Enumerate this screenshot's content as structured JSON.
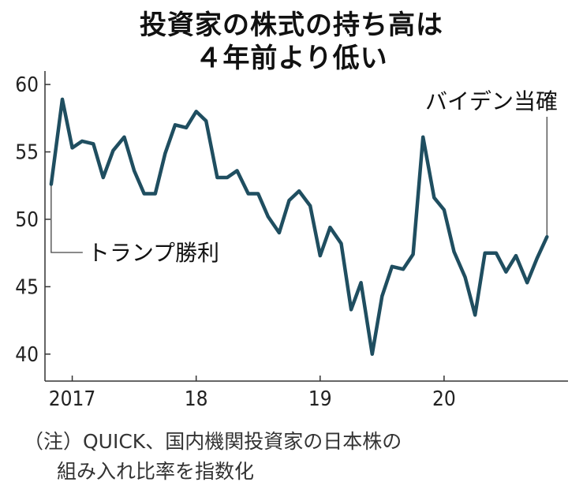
{
  "header": {
    "title_line1": "投資家の株式の持ち高は",
    "title_line2": "４年前より低い"
  },
  "footer": {
    "note_line1": "（注）QUICK、国内機関投資家の日本株の",
    "note_line2": "組み入れ比率を指数化"
  },
  "chart_data": {
    "type": "line",
    "title": "投資家の株式の持ち高は４年前より低い",
    "xlabel": "",
    "ylabel": "",
    "ylim": [
      38,
      61
    ],
    "yticks": [
      40,
      45,
      50,
      55,
      60
    ],
    "xticks": [
      {
        "label": "2017",
        "x": 2017.0
      },
      {
        "label": "18",
        "x": 2018.0
      },
      {
        "label": "19",
        "x": 2019.0
      },
      {
        "label": "20",
        "x": 2020.0
      }
    ],
    "xlim": [
      2016.78,
      2021.0
    ],
    "line_color": "#1f4e60",
    "annotations": [
      {
        "label": "トランプ勝利",
        "x": 2016.83,
        "y": 52.6
      },
      {
        "label": "バイデン当確",
        "x": 2020.83,
        "y": 48.7
      }
    ],
    "series": [
      {
        "x": [
          2016.83,
          2016.92,
          2017.0,
          2017.08,
          2017.17,
          2017.25,
          2017.33,
          2017.42,
          2017.5,
          2017.58,
          2017.67,
          2017.75,
          2017.83,
          2017.92,
          2018.0,
          2018.08,
          2018.17,
          2018.25,
          2018.33,
          2018.42,
          2018.5,
          2018.58,
          2018.67,
          2018.75,
          2018.83,
          2018.92,
          2019.0,
          2019.08,
          2019.17,
          2019.25,
          2019.33,
          2019.42,
          2019.5,
          2019.58,
          2019.67,
          2019.75,
          2019.83,
          2019.92,
          2020.0,
          2020.08,
          2020.17,
          2020.25,
          2020.33,
          2020.42,
          2020.5,
          2020.58,
          2020.67,
          2020.75,
          2020.83
        ],
        "values": [
          52.6,
          58.9,
          55.3,
          55.8,
          55.6,
          53.1,
          55.1,
          56.1,
          53.6,
          51.9,
          51.9,
          54.9,
          57.0,
          56.8,
          58.0,
          57.3,
          53.1,
          53.1,
          53.6,
          51.9,
          51.9,
          50.2,
          49.0,
          51.4,
          52.1,
          51.0,
          47.3,
          49.4,
          48.2,
          43.3,
          45.3,
          40.0,
          44.3,
          46.5,
          46.3,
          47.4,
          56.1,
          51.6,
          50.7,
          47.6,
          45.7,
          42.9,
          47.5,
          47.5,
          46.1,
          47.3,
          45.3,
          47.1,
          48.7
        ]
      }
    ]
  }
}
